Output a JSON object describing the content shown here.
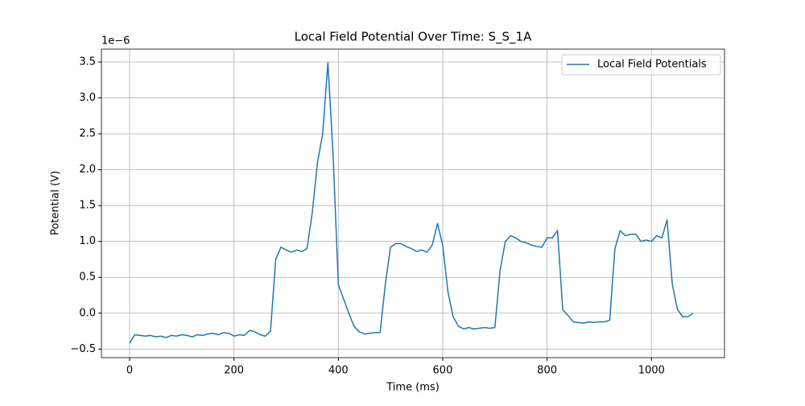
{
  "chart_data": {
    "type": "line",
    "title": "Local Field Potential Over Time: S_S_1A",
    "xlabel": "Time (ms)",
    "ylabel": "Potential (V)",
    "y_offset_label": "1e−6",
    "x": [
      0,
      10,
      20,
      30,
      40,
      50,
      60,
      70,
      80,
      90,
      100,
      110,
      120,
      130,
      140,
      150,
      160,
      170,
      180,
      190,
      200,
      210,
      220,
      230,
      240,
      250,
      260,
      270,
      280,
      290,
      300,
      310,
      320,
      330,
      340,
      350,
      360,
      370,
      380,
      390,
      400,
      410,
      420,
      430,
      440,
      450,
      460,
      470,
      480,
      490,
      500,
      510,
      520,
      530,
      540,
      550,
      560,
      570,
      580,
      590,
      600,
      610,
      620,
      630,
      640,
      650,
      660,
      670,
      680,
      690,
      700,
      710,
      720,
      730,
      740,
      750,
      760,
      770,
      780,
      790,
      800,
      810,
      820,
      830,
      840,
      850,
      860,
      870,
      880,
      890,
      900,
      910,
      920,
      930,
      940,
      950,
      960,
      970,
      980,
      990,
      1000,
      1010,
      1020,
      1030,
      1040,
      1050,
      1060,
      1070,
      1080
    ],
    "series": [
      {
        "name": "Local Field Potentials",
        "color": "#1f77b4",
        "values": [
          -0.42,
          -0.3,
          -0.31,
          -0.32,
          -0.31,
          -0.33,
          -0.32,
          -0.34,
          -0.31,
          -0.32,
          -0.3,
          -0.31,
          -0.33,
          -0.3,
          -0.31,
          -0.29,
          -0.28,
          -0.3,
          -0.27,
          -0.28,
          -0.32,
          -0.3,
          -0.31,
          -0.24,
          -0.26,
          -0.3,
          -0.32,
          -0.25,
          0.75,
          0.92,
          0.88,
          0.85,
          0.88,
          0.86,
          0.9,
          1.4,
          2.1,
          2.5,
          3.49,
          2.2,
          0.4,
          0.2,
          0.0,
          -0.18,
          -0.26,
          -0.29,
          -0.28,
          -0.27,
          -0.27,
          0.4,
          0.92,
          0.97,
          0.97,
          0.93,
          0.9,
          0.86,
          0.88,
          0.85,
          0.95,
          1.25,
          0.95,
          0.3,
          -0.05,
          -0.18,
          -0.22,
          -0.2,
          -0.22,
          -0.21,
          -0.2,
          -0.21,
          -0.2,
          0.6,
          1.0,
          1.08,
          1.05,
          1.0,
          0.98,
          0.95,
          0.93,
          0.92,
          1.05,
          1.05,
          1.15,
          0.05,
          -0.03,
          -0.12,
          -0.13,
          -0.14,
          -0.12,
          -0.13,
          -0.12,
          -0.12,
          -0.1,
          0.9,
          1.15,
          1.08,
          1.1,
          1.1,
          1.0,
          1.02,
          1.0,
          1.08,
          1.05,
          1.3,
          0.4,
          0.05,
          -0.05,
          -0.05,
          0.0
        ]
      }
    ],
    "xlim": [
      -54,
      1140
    ],
    "ylim": [
      -0.62,
      3.68
    ],
    "xticks": [
      0,
      200,
      400,
      600,
      800,
      1000
    ],
    "yticks": [
      {
        "value": -0.5,
        "label": "−0.5"
      },
      {
        "value": 0,
        "label": "0.0"
      },
      0.5,
      {
        "value": 1,
        "label": "1.0"
      },
      1.5,
      {
        "value": 2,
        "label": "2.0"
      },
      2.5,
      {
        "value": 3,
        "label": "3.0"
      },
      3.5
    ],
    "grid": true,
    "legend": "upper right"
  }
}
